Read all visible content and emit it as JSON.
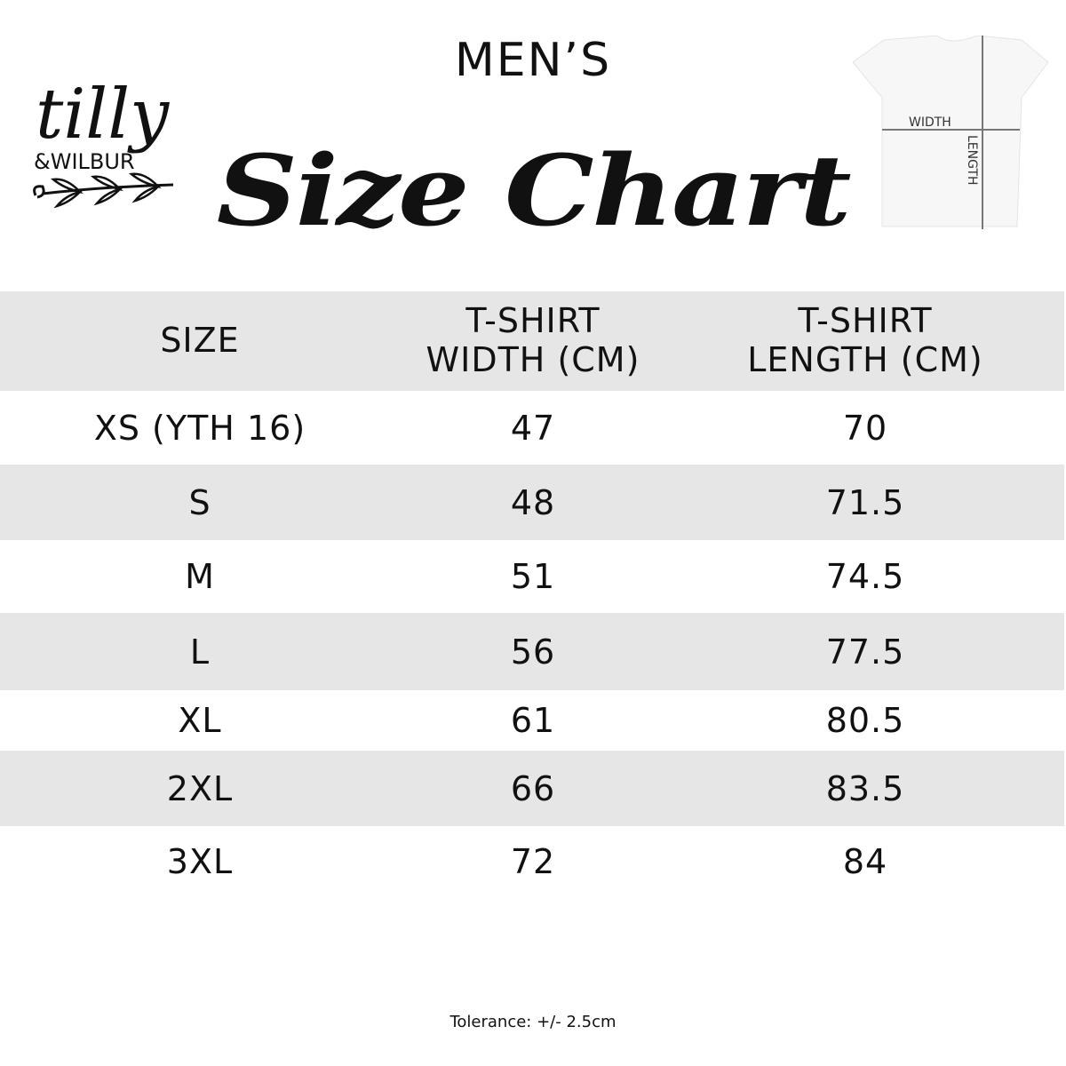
{
  "brand": {
    "logo_text": "tilly &WILBUR"
  },
  "header": {
    "subtitle": "MEN’S",
    "title": "Size Chart"
  },
  "diagram": {
    "width_label": "WIDTH",
    "length_label": "LENGTH"
  },
  "table": {
    "headers": [
      "SIZE",
      "T-SHIRT WIDTH (CM)",
      "T-SHIRT LENGTH (CM)"
    ],
    "rows": [
      [
        "XS (YTH 16)",
        "47",
        "70"
      ],
      [
        "S",
        "48",
        "71.5"
      ],
      [
        "M",
        "51",
        "74.5"
      ],
      [
        "L",
        "56",
        "77.5"
      ],
      [
        "XL",
        "61",
        "80.5"
      ],
      [
        "2XL",
        "66",
        "83.5"
      ],
      [
        "3XL",
        "72",
        "84"
      ]
    ],
    "stripe_color": "#e6e6e6"
  },
  "footer": {
    "tolerance": "Tolerance: +/- 2.5cm"
  }
}
